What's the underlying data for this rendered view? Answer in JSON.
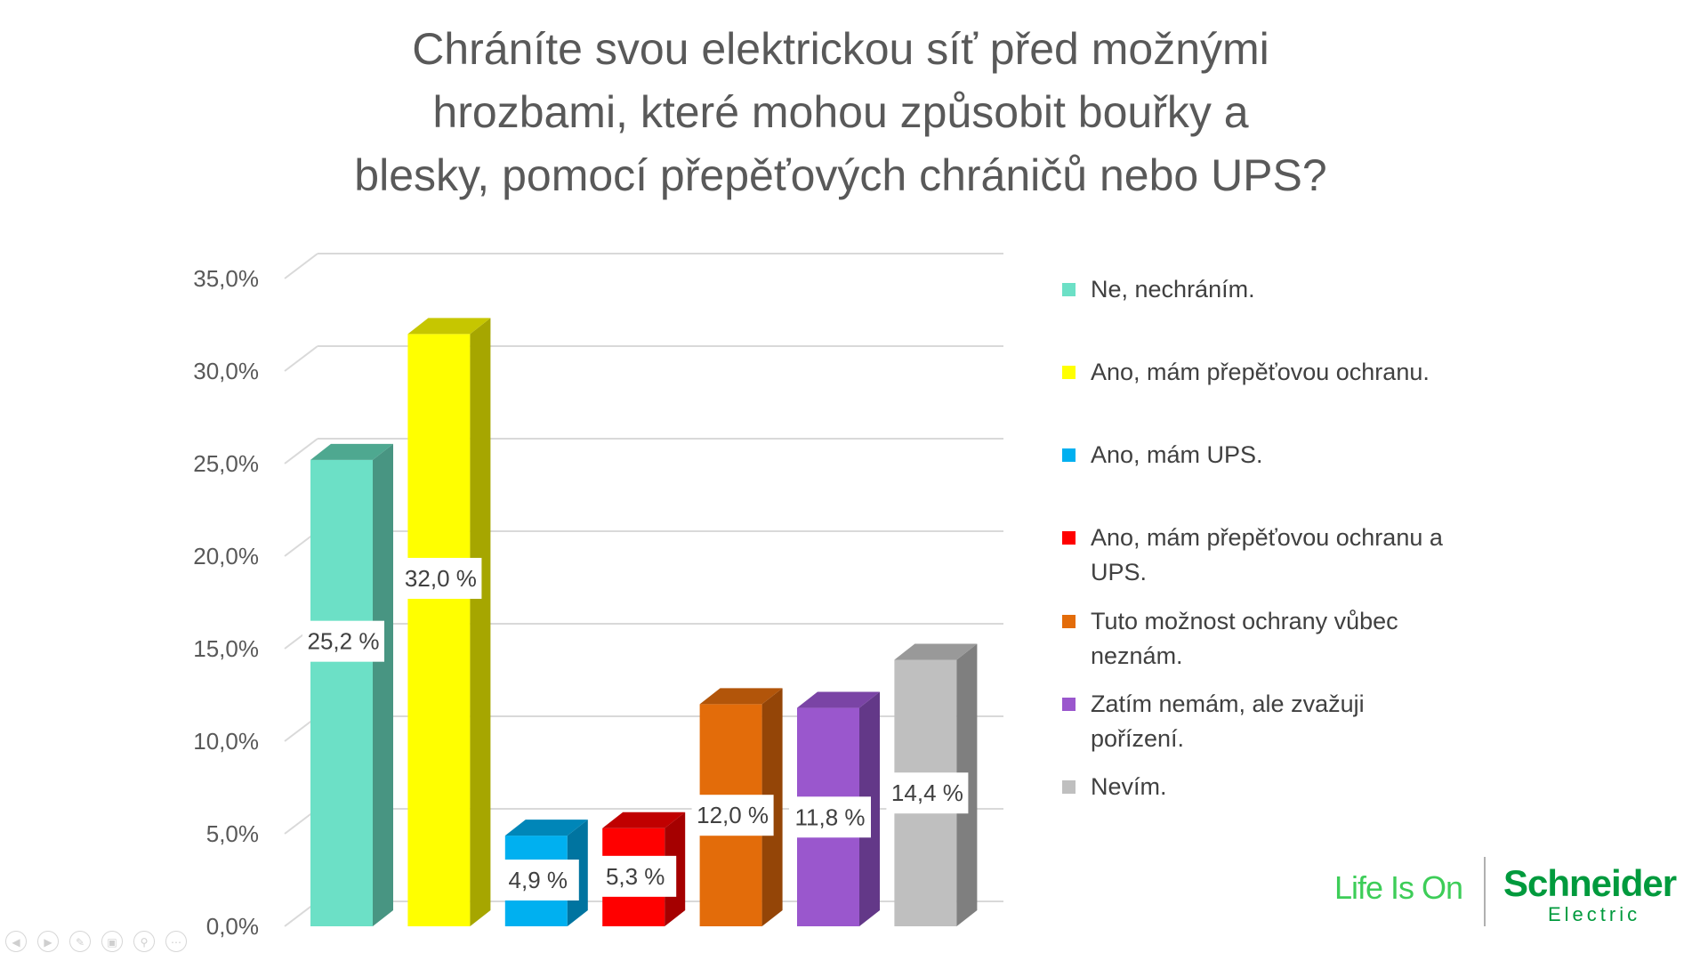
{
  "chart_data": {
    "type": "bar",
    "title": "Chráníte svou elektrickou síť před možnými hrozbami, které mohou způsobit bouřky a blesky, pomocí přepěťových chráničů nebo UPS?",
    "title_lines": [
      "Chráníte svou elektrickou síť před možnými",
      "hrozbami, které mohou způsobit bouřky a",
      "blesky, pomocí přepěťových chráničů nebo UPS?"
    ],
    "categories": [
      "Ne, nechráním.",
      "Ano, mám přepěťovou ochranu.",
      "Ano, mám UPS.",
      "Ano, mám přepěťovou ochranu a UPS.",
      "Tuto možnost ochrany vůbec neznám.",
      "Zatím nemám, ale zvažuji pořízení.",
      "Nevím."
    ],
    "legend_lines": [
      [
        "Ne, nechráním."
      ],
      [
        "Ano, mám přepěťovou ochranu."
      ],
      [
        "Ano, mám UPS."
      ],
      [
        "Ano, mám přepěťovou ochranu a",
        "UPS."
      ],
      [
        "Tuto možnost ochrany vůbec",
        "neznám."
      ],
      [
        "Zatím nemám, ale zvažuji",
        "pořízení."
      ],
      [
        "Nevím."
      ]
    ],
    "values": [
      25.2,
      32.0,
      4.9,
      5.3,
      12.0,
      11.8,
      14.4
    ],
    "data_labels": [
      "25,2 %",
      "32,0 %",
      "4,9 %",
      "5,3 %",
      "12,0 %",
      "11,8 %",
      "14,4 %"
    ],
    "colors": [
      "#6CE0C6",
      "#FFFF00",
      "#00B0F0",
      "#FF0000",
      "#E36C0A",
      "#9A57CD",
      "#BFBFBF"
    ],
    "side_colors": [
      "#489582",
      "#A6A600",
      "#0074A0",
      "#A50000",
      "#944507",
      "#633888",
      "#7F7F7F"
    ],
    "top_colors": [
      "#4EA890",
      "#C6C600",
      "#0086B8",
      "#C00000",
      "#B2550A",
      "#7A44A5",
      "#999999"
    ],
    "yticks": [
      "0,0%",
      "5,0%",
      "10,0%",
      "15,0%",
      "20,0%",
      "25,0%",
      "30,0%",
      "35,0%"
    ],
    "ylim": [
      0,
      35
    ],
    "grid": true,
    "legend_position": "right",
    "xlabel": "",
    "ylabel": ""
  },
  "logo": {
    "tagline": "Life Is On",
    "brand": "Schneider",
    "brand_sub": "Electric"
  },
  "controls": [
    "previous-icon",
    "next-icon",
    "pen-icon",
    "slides-icon",
    "zoom-icon",
    "more-icon"
  ]
}
